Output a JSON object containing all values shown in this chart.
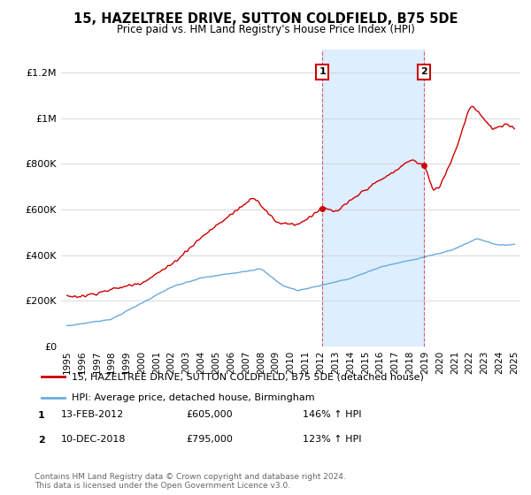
{
  "title": "15, HAZELTREE DRIVE, SUTTON COLDFIELD, B75 5DE",
  "subtitle": "Price paid vs. HM Land Registry's House Price Index (HPI)",
  "legend_line1": "15, HAZELTREE DRIVE, SUTTON COLDFIELD, B75 5DE (detached house)",
  "legend_line2": "HPI: Average price, detached house, Birmingham",
  "annotation1_label": "1",
  "annotation1_date": "13-FEB-2012",
  "annotation1_price": 605000,
  "annotation1_hpi": "146% ↑ HPI",
  "annotation2_label": "2",
  "annotation2_date": "10-DEC-2018",
  "annotation2_price": 795000,
  "annotation2_hpi": "123% ↑ HPI",
  "footer": "Contains HM Land Registry data © Crown copyright and database right 2024.\nThis data is licensed under the Open Government Licence v3.0.",
  "hpi_line_color": "#6aabdc",
  "price_line_color": "#cc0000",
  "annotation_box_color": "#cc0000",
  "shaded_region_color": "#ddeeff",
  "ylim": [
    0,
    1300000
  ],
  "yticks": [
    0,
    200000,
    400000,
    600000,
    800000,
    1000000,
    1200000
  ],
  "ytick_labels": [
    "£0",
    "£200K",
    "£400K",
    "£600K",
    "£800K",
    "£1M",
    "£1.2M"
  ],
  "tx1_x": 2012.12,
  "tx1_y": 605000,
  "tx2_x": 2018.92,
  "tx2_y": 795000,
  "xlim_left": 1994.6,
  "xlim_right": 2025.4
}
